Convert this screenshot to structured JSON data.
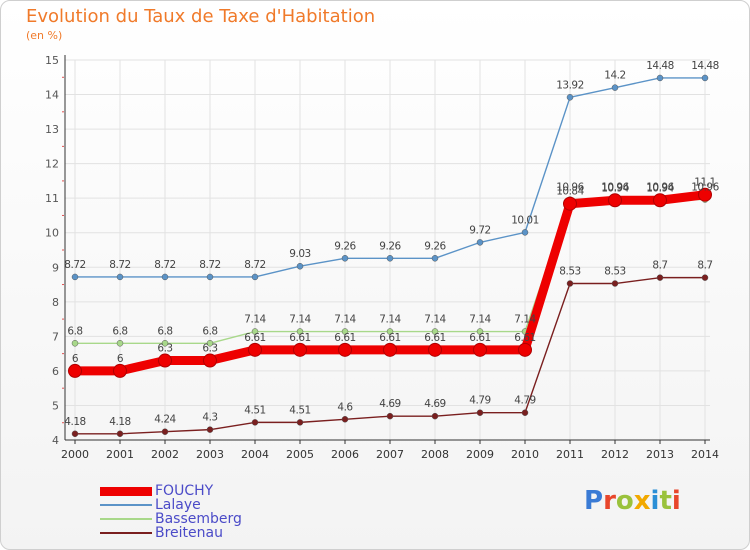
{
  "chart_data": {
    "type": "line",
    "title": "Evolution du Taux de Taxe d'Habitation",
    "subtitle": "(en %)",
    "x": [
      "2000",
      "2001",
      "2002",
      "2003",
      "2004",
      "2005",
      "2006",
      "2007",
      "2008",
      "2009",
      "2010",
      "2011",
      "2012",
      "2013",
      "2014"
    ],
    "ylim": [
      4,
      15
    ],
    "yticks": [
      4,
      5,
      6,
      7,
      8,
      9,
      10,
      11,
      12,
      13,
      14,
      15
    ],
    "grid": true,
    "legend_position": "bottom-left",
    "series": [
      {
        "name": "Breitenau",
        "color": "#7a1f1f",
        "values": [
          4.18,
          4.18,
          4.24,
          4.3,
          4.51,
          4.51,
          4.6,
          4.69,
          4.69,
          4.79,
          4.79,
          8.53,
          8.53,
          8.7,
          8.7
        ],
        "labels": [
          "4.18",
          "4.18",
          "4.24",
          "4.3",
          "4.51",
          "4.51",
          "4.6",
          "4.69",
          "4.69",
          "4.79",
          "4.79",
          "8.53",
          "8.53",
          "8.7",
          "8.7"
        ]
      },
      {
        "name": "Lalaye",
        "color": "#5b93c7",
        "values": [
          8.72,
          8.72,
          8.72,
          8.72,
          8.72,
          9.03,
          9.26,
          9.26,
          9.26,
          9.72,
          10.01,
          13.92,
          14.2,
          14.48,
          14.48
        ],
        "labels": [
          "8.72",
          "8.72",
          "8.72",
          "8.72",
          "8.72",
          "9.03",
          "9.26",
          "9.26",
          "9.26",
          "9.72",
          "10.01",
          "13.92",
          "14.2",
          "14.48",
          "14.48"
        ]
      },
      {
        "name": "Bassemberg",
        "color": "#a8d88a",
        "values": [
          6.8,
          6.8,
          6.8,
          6.8,
          7.14,
          7.14,
          7.14,
          7.14,
          7.14,
          7.14,
          7.14,
          10.96,
          10.96,
          10.96,
          10.96
        ],
        "labels": [
          "6.8",
          "6.8",
          "6.8",
          "6.8",
          "7.14",
          "7.14",
          "7.14",
          "7.14",
          "7.14",
          "7.14",
          "7.14",
          "10.96",
          "10.96",
          "10.96",
          "10.96"
        ]
      },
      {
        "name": "FOUCHY",
        "color": "#ee0000",
        "values": [
          6,
          6,
          6.3,
          6.3,
          6.61,
          6.61,
          6.61,
          6.61,
          6.61,
          6.61,
          6.61,
          10.84,
          10.94,
          10.94,
          11.1
        ],
        "labels": [
          "6",
          "6",
          "6.3",
          "6.3",
          "6.61",
          "6.61",
          "6.61",
          "6.61",
          "6.61",
          "6.61",
          "6.61",
          "10.84",
          "10.94",
          "10.94",
          "11.1"
        ]
      }
    ]
  },
  "legend": {
    "items": [
      {
        "label": "FOUCHY",
        "color": "#ee0000"
      },
      {
        "label": "Lalaye",
        "color": "#5b93c7"
      },
      {
        "label": "Bassemberg",
        "color": "#a8d88a"
      },
      {
        "label": "Breitenau",
        "color": "#7a1f1f"
      }
    ]
  },
  "logo": {
    "text": "Proxiti",
    "colors": [
      "#3a7bd5",
      "#e8462b",
      "#9ac23c",
      "#f2a900",
      "#2b8fd6",
      "#9ac23c",
      "#e8462b"
    ]
  }
}
